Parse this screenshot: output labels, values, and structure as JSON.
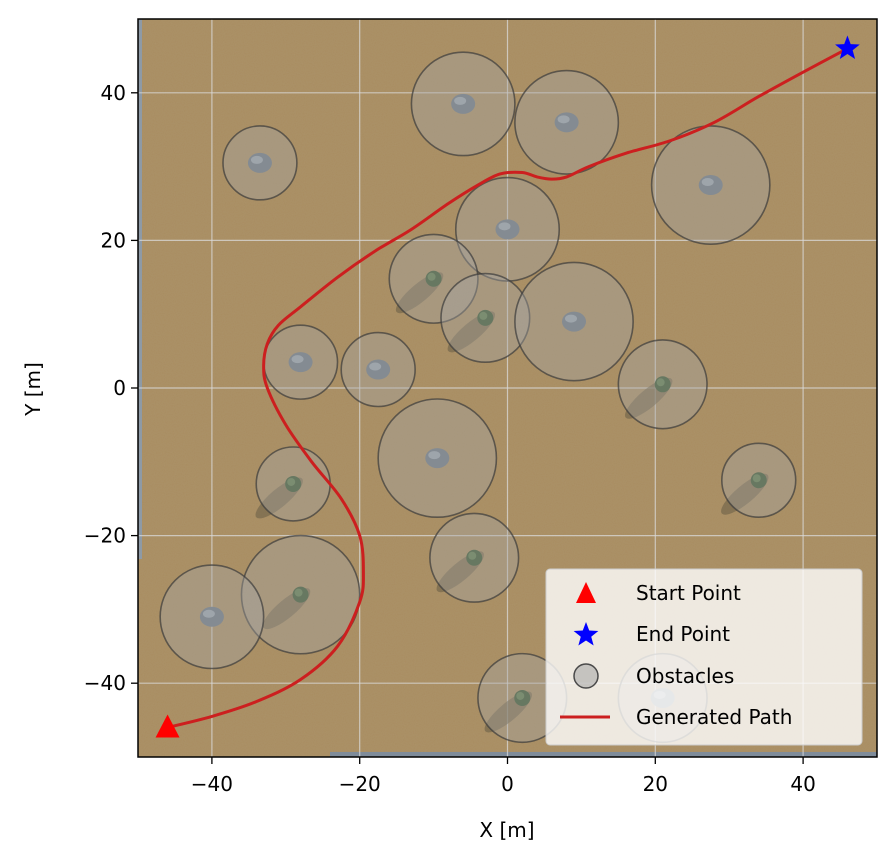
{
  "chart_data": {
    "type": "scatter",
    "xlabel": "X [m]",
    "ylabel": "Y [m]",
    "xlim": [
      -50,
      50
    ],
    "ylim": [
      -50,
      50
    ],
    "grid": true,
    "legend_placement": "lower-right",
    "x_ticks": [
      -40,
      -20,
      0,
      20,
      40
    ],
    "y_ticks": [
      -40,
      -20,
      0,
      20,
      40
    ],
    "x_tick_labels": [
      "−40",
      "−20",
      "0",
      "20",
      "40"
    ],
    "y_tick_labels": [
      "−40",
      "−20",
      "0",
      "20",
      "40"
    ],
    "background": "aerial desert terrain image",
    "start_point": {
      "label": "Start Point",
      "x": -46,
      "y": -46,
      "color": "#ff0000",
      "marker": "triangle"
    },
    "end_point": {
      "label": "End Point",
      "x": 46,
      "y": 46,
      "color": "#0000ff",
      "marker": "star"
    },
    "obstacles": {
      "label": "Obstacles",
      "items": [
        {
          "kind": "rock",
          "x": -6,
          "y": 38.5,
          "r": 7
        },
        {
          "kind": "rock",
          "x": 8,
          "y": 36,
          "r": 7
        },
        {
          "kind": "rock",
          "x": -33.5,
          "y": 30.5,
          "r": 5
        },
        {
          "kind": "rock",
          "x": 27.5,
          "y": 27.5,
          "r": 8
        },
        {
          "kind": "rock",
          "x": 0,
          "y": 21.5,
          "r": 7
        },
        {
          "kind": "tree",
          "x": -10,
          "y": 14.8,
          "r": 6
        },
        {
          "kind": "tree",
          "x": -3,
          "y": 9.5,
          "r": 6
        },
        {
          "kind": "rock",
          "x": 9,
          "y": 9,
          "r": 8
        },
        {
          "kind": "rock",
          "x": -28,
          "y": 3.5,
          "r": 5
        },
        {
          "kind": "rock",
          "x": -17.5,
          "y": 2.5,
          "r": 5
        },
        {
          "kind": "tree",
          "x": 21,
          "y": 0.5,
          "r": 6
        },
        {
          "kind": "rock",
          "x": -9.5,
          "y": -9.5,
          "r": 8
        },
        {
          "kind": "tree",
          "x": -29,
          "y": -13,
          "r": 5
        },
        {
          "kind": "tree",
          "x": 34,
          "y": -12.5,
          "r": 5
        },
        {
          "kind": "tree",
          "x": -4.5,
          "y": -23,
          "r": 6
        },
        {
          "kind": "tree",
          "x": -28,
          "y": -28,
          "r": 8
        },
        {
          "kind": "rock",
          "x": -40,
          "y": -31,
          "r": 7
        },
        {
          "kind": "tree",
          "x": 2,
          "y": -42,
          "r": 6
        },
        {
          "kind": "rock",
          "x": 21,
          "y": -42,
          "r": 6
        }
      ]
    },
    "series": [
      {
        "name": "Generated Path",
        "color": "#cc1f1f",
        "points": [
          [
            -46,
            -46
          ],
          [
            -40,
            -44.5
          ],
          [
            -34,
            -42.5
          ],
          [
            -28,
            -39.5
          ],
          [
            -23,
            -35
          ],
          [
            -20,
            -29
          ],
          [
            -19.5,
            -25
          ],
          [
            -20,
            -20
          ],
          [
            -22.5,
            -15
          ],
          [
            -26.5,
            -10
          ],
          [
            -30,
            -5
          ],
          [
            -32.5,
            0
          ],
          [
            -33,
            3
          ],
          [
            -32.5,
            6
          ],
          [
            -31,
            8.5
          ],
          [
            -28,
            11
          ],
          [
            -23,
            15
          ],
          [
            -18,
            18.5
          ],
          [
            -13,
            21.5
          ],
          [
            -8,
            25
          ],
          [
            -4,
            27.5
          ],
          [
            -1,
            29
          ],
          [
            2,
            29.2
          ],
          [
            4,
            28.6
          ],
          [
            6,
            28.3
          ],
          [
            8,
            28.6
          ],
          [
            11,
            30
          ],
          [
            16,
            31.8
          ],
          [
            22,
            33.5
          ],
          [
            28,
            36
          ],
          [
            34,
            39.5
          ],
          [
            40,
            42.8
          ],
          [
            46,
            46
          ]
        ]
      }
    ]
  },
  "legend": {
    "start": "Start Point",
    "end": "End Point",
    "obstacles": "Obstacles",
    "path": "Generated Path"
  }
}
